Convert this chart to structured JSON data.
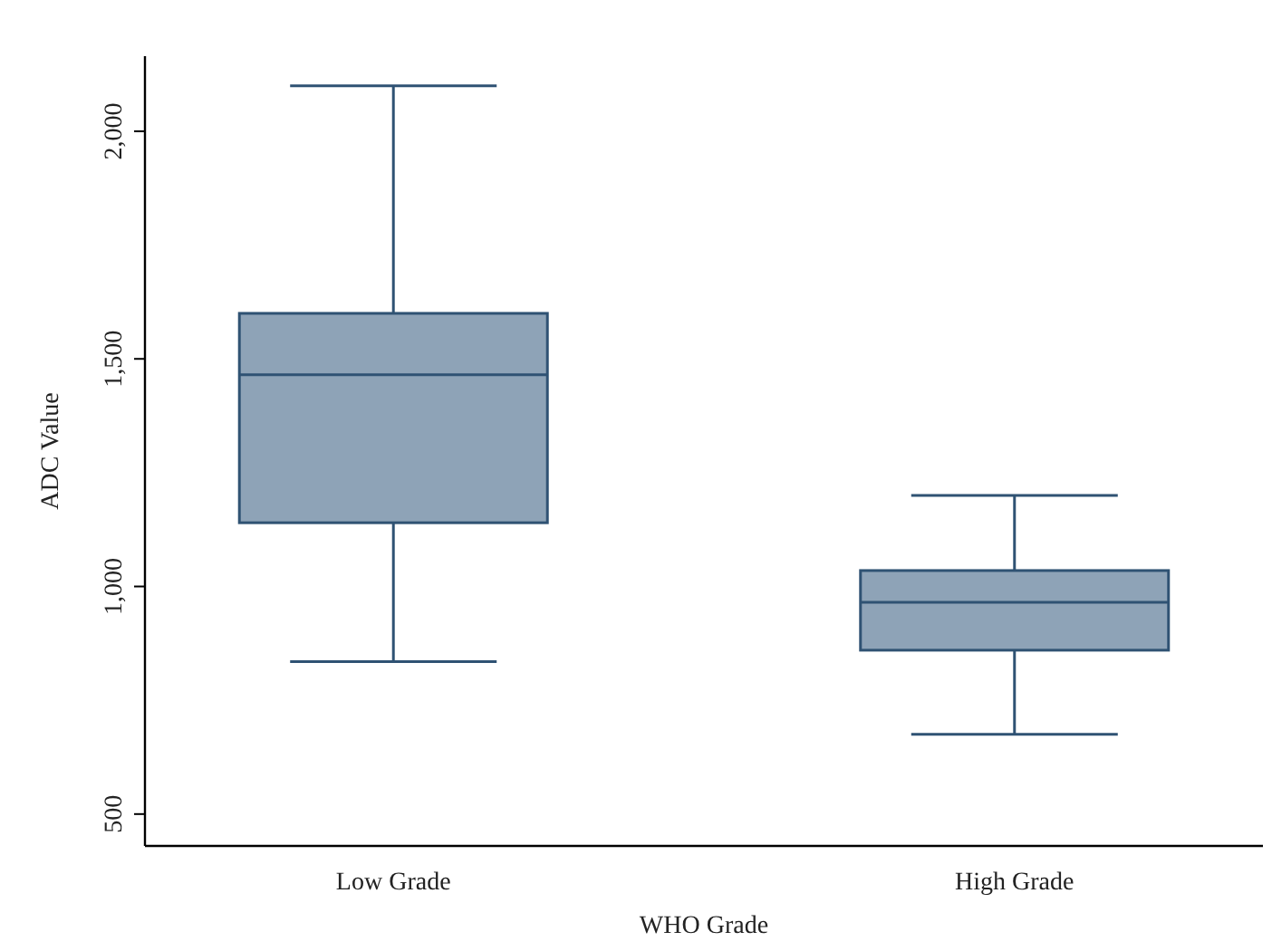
{
  "chart_data": {
    "type": "box",
    "xlabel": "WHO Grade",
    "ylabel": "ADC Value",
    "categories": [
      "Low Grade",
      "High Grade"
    ],
    "boxes": [
      {
        "low": 835,
        "q1": 1140,
        "median": 1465,
        "q3": 1600,
        "high": 2100
      },
      {
        "low": 675,
        "q1": 860,
        "median": 965,
        "q3": 1035,
        "high": 1200
      }
    ],
    "color": "#8ea3b7",
    "ylim": [
      430,
      2165
    ],
    "yticks": [
      {
        "value": 500,
        "label": "500"
      },
      {
        "value": 1000,
        "label": "1,000"
      },
      {
        "value": 1500,
        "label": "1,500"
      },
      {
        "value": 2000,
        "label": "2,000"
      }
    ],
    "grid": false
  }
}
